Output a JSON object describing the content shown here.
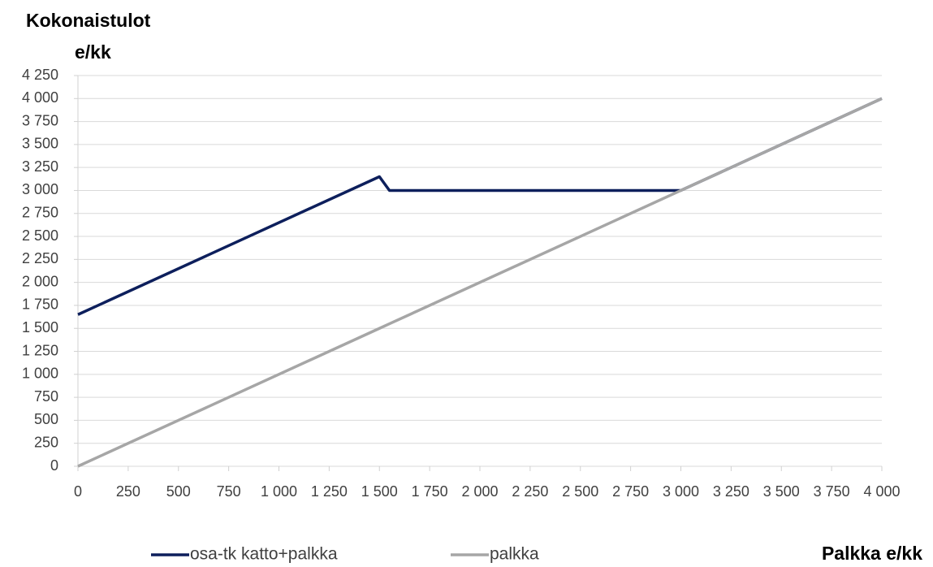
{
  "chart_data": {
    "type": "line",
    "ylabel": [
      "Kokonaistulot",
      "e/kk"
    ],
    "xlabel": "Palkka e/kk",
    "x": [
      0,
      1500,
      1550,
      3000,
      4000
    ],
    "series": [
      {
        "name": "osa-tk katto+palkka",
        "color": "#0d1f5c",
        "values": [
          1650,
          3150,
          3000,
          3000,
          4000
        ]
      },
      {
        "name": "palkka",
        "color": "#a6a6a6",
        "values": [
          0,
          1500,
          1550,
          3000,
          4000
        ]
      }
    ],
    "xlim": [
      0,
      4000
    ],
    "xticks": [
      0,
      250,
      500,
      750,
      {
        "value": 1000,
        "label": "1 000"
      },
      {
        "value": 1250,
        "label": "1 250"
      },
      {
        "value": 1500,
        "label": "1 500"
      },
      {
        "value": 1750,
        "label": "1 750"
      },
      {
        "value": 2000,
        "label": "2 000"
      },
      {
        "value": 2250,
        "label": "2 250"
      },
      {
        "value": 2500,
        "label": "2 500"
      },
      {
        "value": 2750,
        "label": "2 750"
      },
      {
        "value": 3000,
        "label": "3 000"
      },
      {
        "value": 3250,
        "label": "3 250"
      },
      {
        "value": 3500,
        "label": "3 500"
      },
      {
        "value": 3750,
        "label": "3 750"
      },
      {
        "value": 4000,
        "label": "4 000"
      }
    ],
    "ylim": [
      0,
      4250
    ],
    "yticks": [
      0,
      250,
      500,
      750,
      {
        "value": 1000,
        "label": "1 000"
      },
      {
        "value": 1250,
        "label": "1 250"
      },
      {
        "value": 1500,
        "label": "1 500"
      },
      {
        "value": 1750,
        "label": "1 750"
      },
      {
        "value": 2000,
        "label": "2 000"
      },
      {
        "value": 2250,
        "label": "2 250"
      },
      {
        "value": 2500,
        "label": "2 500"
      },
      {
        "value": 2750,
        "label": "2 750"
      },
      {
        "value": 3000,
        "label": "3 000"
      },
      {
        "value": 3250,
        "label": "3 250"
      },
      {
        "value": 3500,
        "label": "3 500"
      },
      {
        "value": 3750,
        "label": "3 750"
      },
      {
        "value": 4000,
        "label": "4 000"
      },
      {
        "value": 4250,
        "label": "4 250"
      }
    ],
    "grid": true,
    "legend": "bottom"
  }
}
